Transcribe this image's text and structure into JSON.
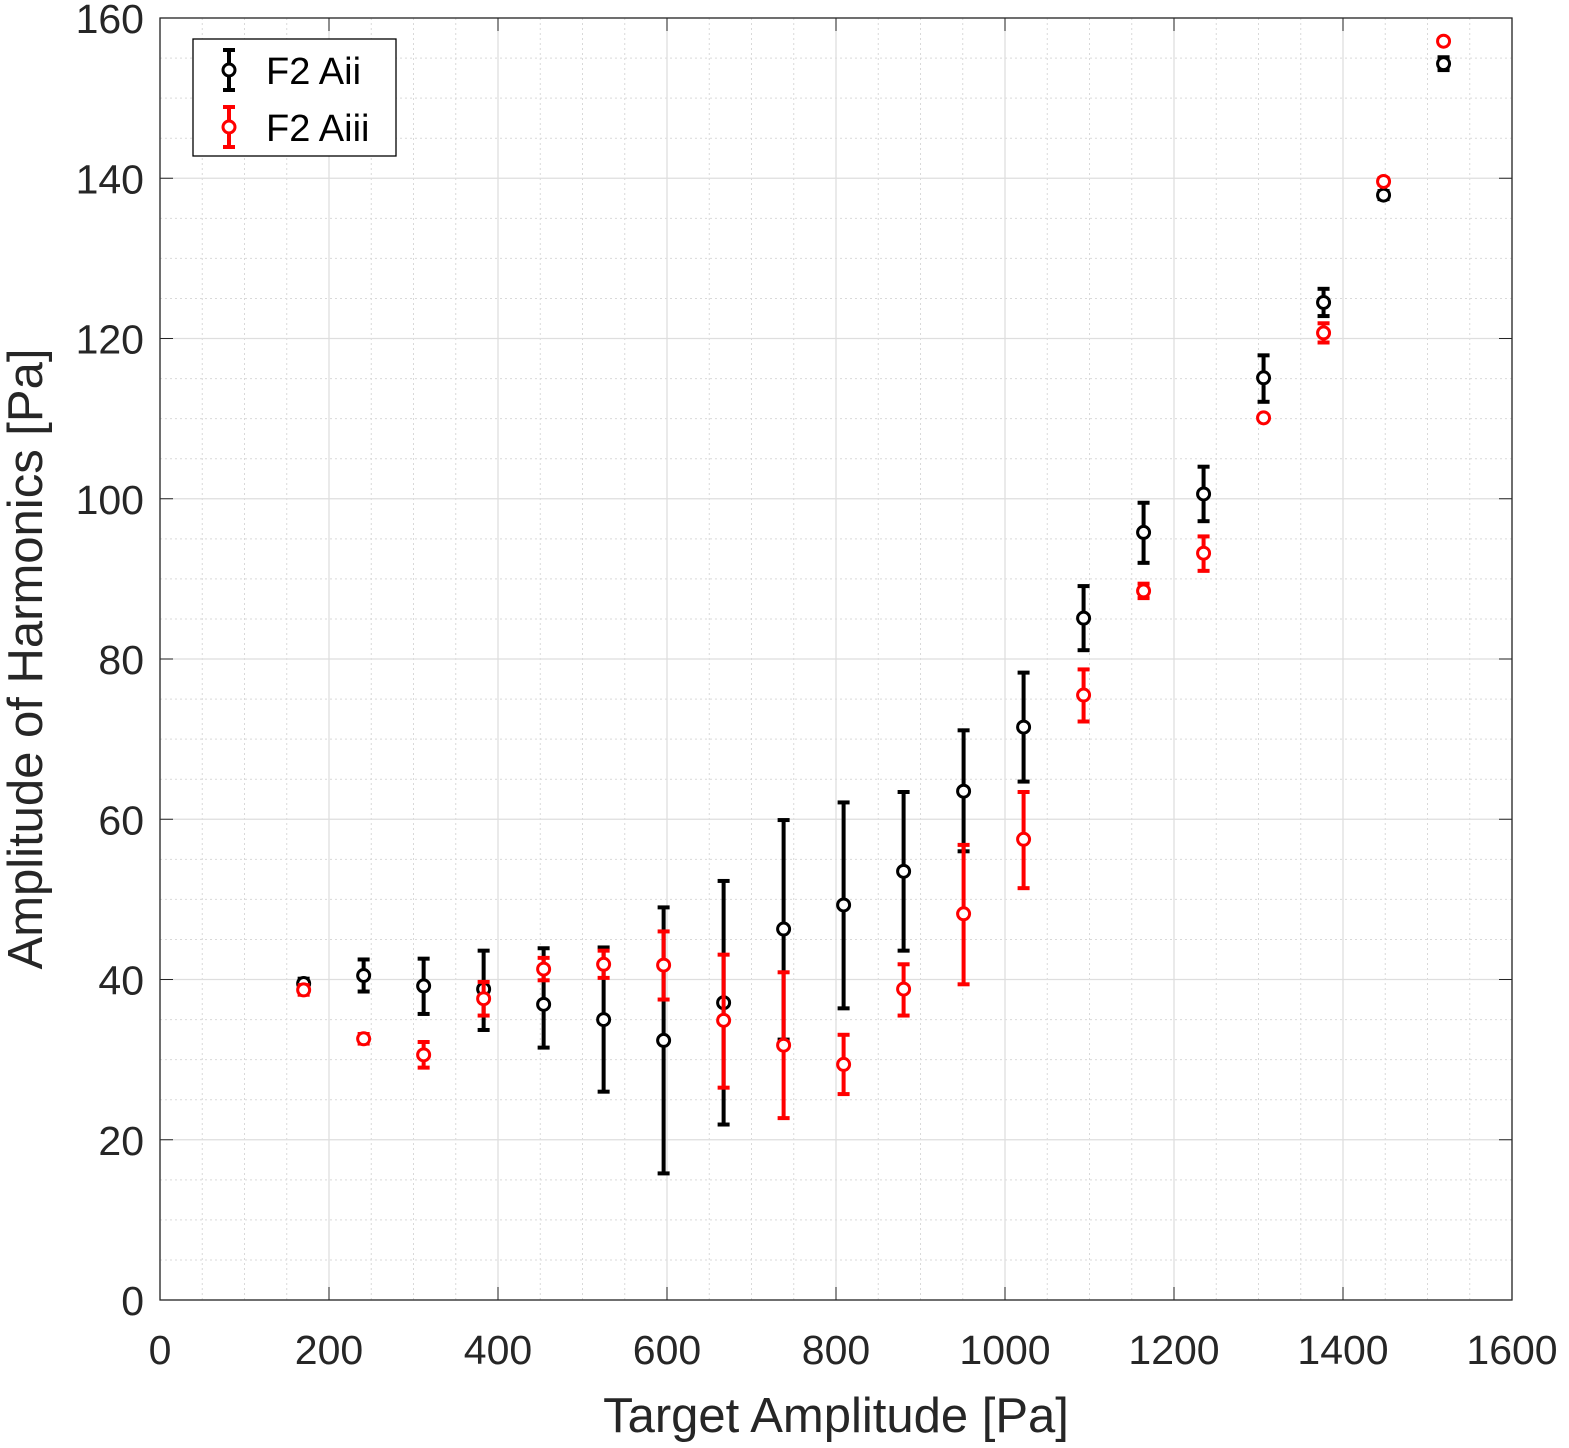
{
  "chart_data": {
    "type": "scatter",
    "title": "",
    "xlabel": "Target Amplitude [Pa]",
    "ylabel": "Amplitude of Harmonics [Pa]",
    "xlim": [
      0,
      1600
    ],
    "ylim": [
      0,
      160
    ],
    "xticks": [
      "0",
      "200",
      "400",
      "600",
      "800",
      "1000",
      "1200",
      "1400",
      "1600"
    ],
    "yticks": [
      "0",
      "20",
      "40",
      "60",
      "80",
      "100",
      "120",
      "140",
      "160"
    ],
    "grid": true,
    "minor_grid": true,
    "legend_position": "top-left",
    "series": [
      {
        "name": "F2 Aii",
        "color": "#000000",
        "marker": "circle",
        "error_bars": true,
        "x": [
          170,
          241,
          312,
          383,
          454,
          525,
          596,
          667,
          738,
          809,
          880,
          951,
          1022,
          1093,
          1164,
          1235,
          1306,
          1377,
          1448,
          1519
        ],
        "y": [
          39.5,
          40.5,
          39.2,
          38.8,
          36.9,
          35.0,
          32.4,
          37.1,
          46.3,
          49.3,
          53.5,
          63.5,
          71.5,
          85.1,
          95.8,
          100.6,
          115.1,
          124.5,
          137.9,
          154.3
        ],
        "err_low": [
          0.6,
          2.0,
          3.5,
          5.1,
          5.4,
          9.0,
          16.6,
          15.2,
          13.8,
          12.9,
          9.9,
          7.5,
          6.8,
          4.0,
          3.8,
          3.4,
          3.0,
          1.7,
          0.5,
          0.8
        ],
        "err_high": [
          0.6,
          2.0,
          3.4,
          4.8,
          7.0,
          9.0,
          16.6,
          15.2,
          13.6,
          12.8,
          9.9,
          7.6,
          6.8,
          4.0,
          3.7,
          3.4,
          2.8,
          1.7,
          0.5,
          0.8
        ]
      },
      {
        "name": "F2 Aiii",
        "color": "#ff0000",
        "marker": "circle",
        "error_bars": true,
        "x": [
          170,
          241,
          312,
          383,
          454,
          525,
          596,
          667,
          738,
          809,
          880,
          951,
          1022,
          1093,
          1164,
          1235,
          1306,
          1377,
          1448,
          1519
        ],
        "y": [
          38.7,
          32.6,
          30.6,
          37.6,
          41.3,
          41.9,
          41.8,
          34.9,
          31.8,
          29.4,
          38.8,
          48.2,
          57.5,
          75.5,
          88.5,
          93.2,
          110.1,
          120.7,
          139.6,
          157.1
        ],
        "err_low": [
          0.6,
          0.6,
          1.6,
          2.1,
          1.4,
          1.7,
          4.3,
          8.4,
          9.1,
          3.7,
          3.3,
          8.8,
          6.1,
          3.3,
          0.9,
          2.2,
          0.3,
          1.2,
          0.4,
          0.3
        ],
        "err_high": [
          0.6,
          0.6,
          1.6,
          2.1,
          1.4,
          1.7,
          4.2,
          8.2,
          9.1,
          3.7,
          3.1,
          8.6,
          5.9,
          3.2,
          0.9,
          2.1,
          0.3,
          1.2,
          0.4,
          0.3
        ]
      }
    ]
  }
}
